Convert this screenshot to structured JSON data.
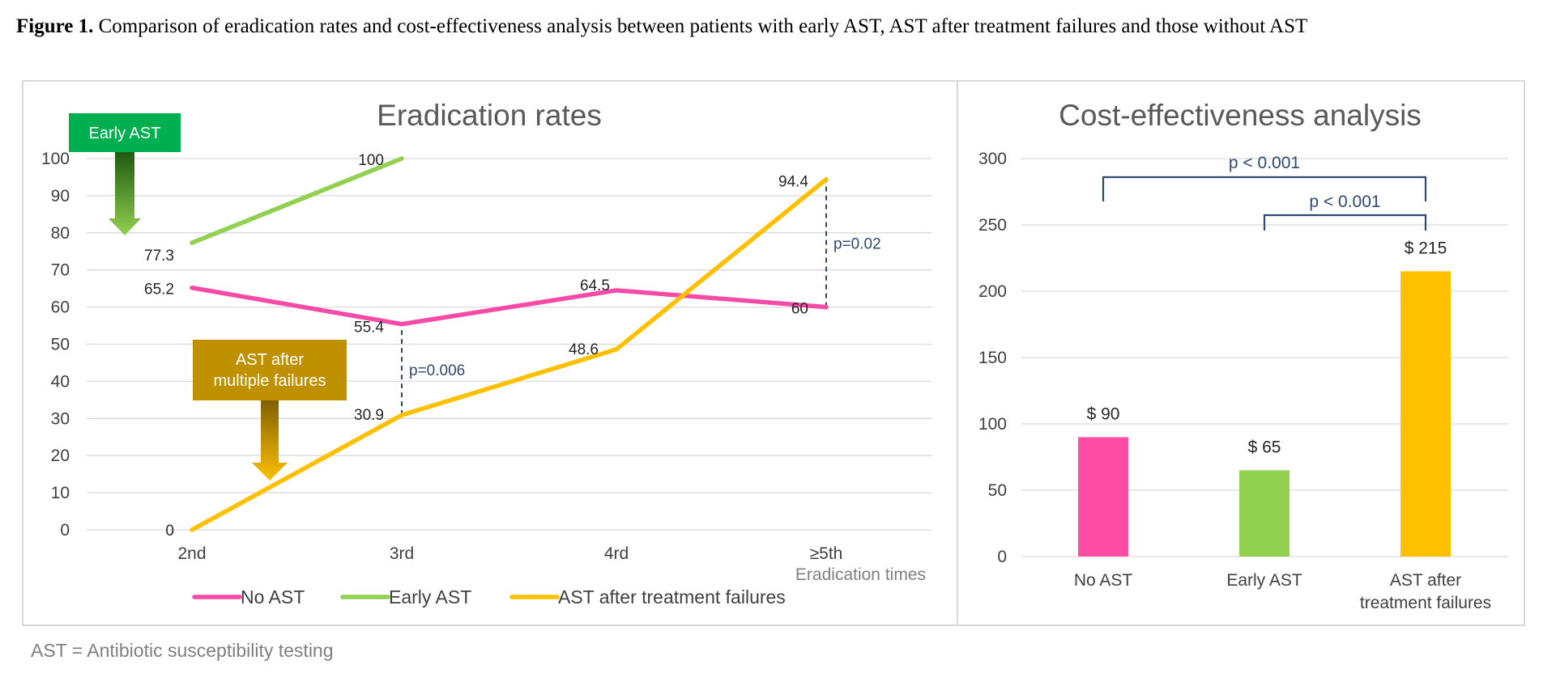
{
  "caption": {
    "label": "Figure 1.",
    "text": " Comparison of eradication rates and cost-effectiveness analysis between patients with early AST, AST after treatment failures and those without AST"
  },
  "footnote": "AST = Antibiotic susceptibility testing",
  "annotations": {
    "early_ast_box": "Early AST",
    "ast_after_box_line1": "AST after",
    "ast_after_box_line2": "multiple failures",
    "colors": {
      "green_box": "#00b050",
      "gold_box": "#bf9000"
    }
  },
  "chart_data": [
    {
      "type": "line",
      "title": "Eradication rates",
      "xlabel": "Eradication times",
      "ylabel": "",
      "categories": [
        "2nd",
        "3rd",
        "4rd",
        "≥5th"
      ],
      "ylim": [
        0,
        100
      ],
      "yticks": [
        0,
        10,
        20,
        30,
        40,
        50,
        60,
        70,
        80,
        90,
        100
      ],
      "grid": true,
      "legend_position": "bottom",
      "series": [
        {
          "name": "No AST",
          "color": "#f54ba7",
          "values": [
            65.2,
            55.4,
            64.5,
            60
          ],
          "labels": [
            "65.2",
            "55.4",
            "64.5",
            "60"
          ]
        },
        {
          "name": "Early AST",
          "color": "#92d050",
          "values": [
            77.3,
            100,
            null,
            null
          ],
          "labels": [
            "77.3",
            "100",
            "",
            ""
          ]
        },
        {
          "name": "AST after treatment failures",
          "color": "#ffc000",
          "values": [
            0,
            30.9,
            48.6,
            94.4
          ],
          "labels": [
            "0",
            "30.9",
            "48.6",
            "94.4"
          ]
        }
      ],
      "comparisons": [
        {
          "category": "3rd",
          "from": 30.9,
          "to": 55.4,
          "text": "p=0.006"
        },
        {
          "category": "≥5th",
          "from": 60,
          "to": 94.4,
          "text": "p=0.02"
        }
      ]
    },
    {
      "type": "bar",
      "title": "Cost-effectiveness analysis",
      "xlabel": "",
      "ylabel": "",
      "categories": [
        "No AST",
        "Early AST",
        "AST after treatment failures"
      ],
      "category_lines": [
        [
          "No AST"
        ],
        [
          "Early AST"
        ],
        [
          "AST after",
          "treatment failures"
        ]
      ],
      "values": [
        90,
        65,
        215
      ],
      "value_labels": [
        "$ 90",
        "$ 65",
        "$ 215"
      ],
      "colors": [
        "#ff4da6",
        "#92d050",
        "#ffc000"
      ],
      "ylim": [
        0,
        300
      ],
      "yticks": [
        0,
        50,
        100,
        150,
        200,
        250,
        300
      ],
      "grid": true,
      "comparisons": [
        {
          "from": "No AST",
          "to": "AST after treatment failures",
          "text": "p < 0.001"
        },
        {
          "from": "Early AST",
          "to": "AST after treatment failures",
          "text": "p < 0.001"
        }
      ]
    }
  ]
}
